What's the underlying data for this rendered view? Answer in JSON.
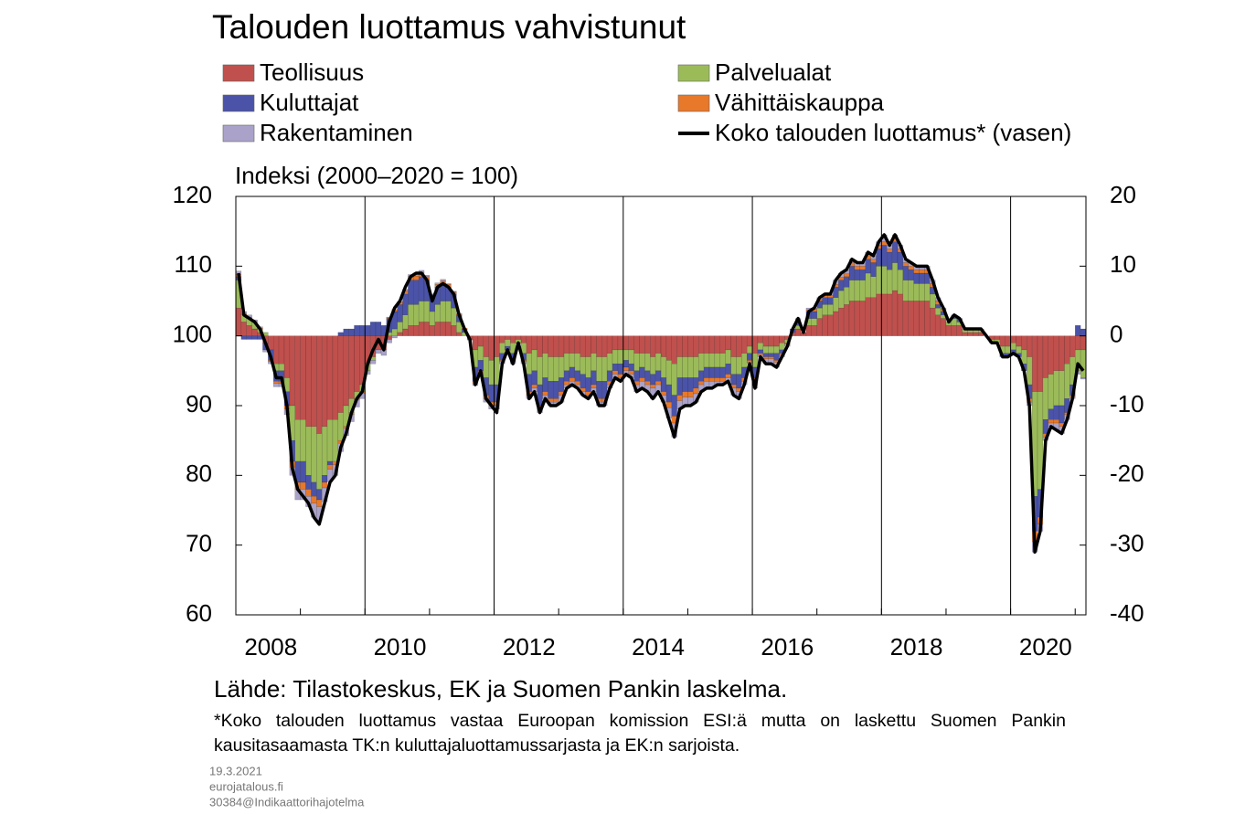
{
  "chart_data": {
    "type": "bar",
    "title": "Talouden luottamus vahvistunut",
    "y_label": "Indeksi (2000–2020 = 100)",
    "source": "Lähde: Tilastokeskus, EK ja Suomen Pankin laskelma.",
    "note": "*Koko talouden luottamus vastaa Euroopan komission ESI:ä mutta on laskettu Suomen Pankin kausitasaamasta TK:n kuluttajaluottamussarjasta ja EK:n sarjoista.",
    "footer": [
      "19.3.2021",
      "eurojatalous.fi",
      "30384@Indikaattorihajotelma"
    ],
    "ylim": [
      60,
      120
    ],
    "yticks": [
      60,
      70,
      80,
      90,
      100,
      110,
      120
    ],
    "y2lim": [
      -40,
      20
    ],
    "y2ticks": [
      -40,
      -30,
      -20,
      -10,
      0,
      10,
      20
    ],
    "categories": [
      null,
      null,
      null,
      null,
      null,
      null,
      "2008",
      null,
      null,
      null,
      null,
      null,
      null,
      null,
      null,
      null,
      null,
      null,
      null,
      null,
      null,
      null,
      null,
      null,
      null,
      null,
      null,
      null,
      null,
      null,
      "2010",
      null,
      null,
      null,
      null,
      null,
      null,
      null,
      null,
      null,
      null,
      null,
      null,
      null,
      null,
      null,
      null,
      null,
      null,
      null,
      null,
      null,
      null,
      null,
      "2012",
      null,
      null,
      null,
      null,
      null,
      null,
      null,
      null,
      null,
      null,
      null,
      null,
      null,
      null,
      null,
      null,
      null,
      null,
      null,
      null,
      null,
      null,
      null,
      "2014",
      null,
      null,
      null,
      null,
      null,
      null,
      null,
      null,
      null,
      null,
      null,
      null,
      null,
      null,
      null,
      null,
      null,
      null,
      null,
      null,
      null,
      null,
      null,
      "2016",
      null,
      null,
      null,
      null,
      null,
      null,
      null,
      null,
      null,
      null,
      null,
      null,
      null,
      null,
      null,
      null,
      null,
      null,
      null,
      null,
      null,
      null,
      null,
      "2018",
      null,
      null,
      null,
      null,
      null,
      null,
      null,
      null,
      null,
      null,
      null,
      null,
      null,
      null,
      null,
      null,
      null,
      null,
      null,
      null,
      null,
      null,
      null,
      "2020",
      null,
      null,
      null,
      null,
      null,
      null,
      null
    ],
    "series": [
      {
        "name": "Teollisuus",
        "color": "#c0504d",
        "axis": "y2",
        "values": [
          4,
          2,
          1.5,
          1,
          0.5,
          -1,
          -2,
          -4,
          -4,
          -6,
          -10,
          -12,
          -12,
          -13,
          -13,
          -14,
          -13,
          -12,
          -12,
          -11,
          -10,
          -9,
          -8,
          -7,
          -4,
          -3,
          -2,
          -2,
          -0.5,
          0,
          0.5,
          1,
          1.5,
          1.5,
          2,
          2,
          1.5,
          2,
          2,
          2,
          1.5,
          0.5,
          0,
          -0.5,
          -2,
          -1.5,
          -3,
          -3.5,
          -3,
          -1,
          -0.5,
          -1,
          -0.5,
          -1,
          -2.5,
          -2,
          -3,
          -2.5,
          -3,
          -3,
          -3,
          -2.5,
          -2.5,
          -2.5,
          -3,
          -3,
          -2.5,
          -3,
          -3,
          -2.5,
          -2,
          -2,
          -2,
          -2,
          -2.5,
          -2.5,
          -2.5,
          -3,
          -2.5,
          -3,
          -3.5,
          -4,
          -3,
          -3,
          -3,
          -3,
          -2.5,
          -2.5,
          -2.5,
          -2.5,
          -2.5,
          -2,
          -3,
          -3,
          -2.5,
          -1.5,
          -2.5,
          -1,
          -1.5,
          -1.5,
          -1.5,
          -1,
          -0.5,
          0.5,
          1,
          0.5,
          1.5,
          1.5,
          2.5,
          3,
          3,
          3.5,
          4,
          4.5,
          5,
          5,
          5,
          5.5,
          5.5,
          6,
          6,
          6,
          6.5,
          6,
          5,
          5,
          5,
          5,
          5,
          4,
          3,
          2.5,
          1.5,
          1.5,
          1.5,
          0.5,
          0.5,
          0.5,
          0.5,
          0,
          -0.5,
          -0.5,
          -1.5,
          -1.5,
          -1,
          -1.5,
          -2,
          -3,
          -8,
          -8,
          -6,
          -5.5,
          -5,
          -5,
          -4,
          -3,
          -2,
          -2
        ]
      },
      {
        "name": "Palvelualat",
        "color": "#9bbb59",
        "axis": "y2",
        "values": [
          4,
          1,
          1,
          1,
          0.5,
          0.5,
          0,
          -1,
          -1,
          -2,
          -5,
          -6,
          -6,
          -7,
          -8,
          -8,
          -7,
          -6,
          -6,
          -4,
          -3,
          -2,
          -1,
          -1,
          -1,
          -0.5,
          0,
          0,
          0.5,
          1,
          1.5,
          2,
          3,
          3,
          3,
          3,
          2,
          2.5,
          3,
          3,
          2.5,
          1.5,
          0.5,
          0,
          -2.5,
          -2,
          -3,
          -3.5,
          -4,
          -1.5,
          -1,
          -1.5,
          -0.5,
          -1.5,
          -3,
          -3,
          -4,
          -3.5,
          -3.5,
          -3.5,
          -3,
          -2.5,
          -2,
          -2.5,
          -2.5,
          -3,
          -2.5,
          -3.5,
          -3.5,
          -2.5,
          -2,
          -2,
          -1.5,
          -2,
          -2.5,
          -2,
          -2.5,
          -2.5,
          -2.5,
          -3,
          -3.5,
          -4.5,
          -3,
          -3,
          -3,
          -3,
          -2.5,
          -2,
          -2,
          -2,
          -2,
          -2,
          -2.5,
          -2.5,
          -2,
          -1,
          -2,
          -1,
          -1,
          -1,
          -1,
          -1,
          -0.5,
          0,
          0.5,
          0,
          1,
          1,
          1.5,
          1.5,
          1.5,
          2,
          2.5,
          2.5,
          3,
          3,
          3,
          3.5,
          3,
          4,
          4,
          3.5,
          4,
          3.5,
          3,
          3,
          2.5,
          2.5,
          2.5,
          2,
          1,
          0.5,
          0.5,
          1,
          0.5,
          0.5,
          0.5,
          0.5,
          0.5,
          0,
          -0.5,
          -0.5,
          -1,
          -1,
          -1,
          -1,
          -2,
          -4,
          -15,
          -14,
          -6,
          -5,
          -5,
          -5,
          -5,
          -4,
          -3,
          -4
        ]
      },
      {
        "name": "Kuluttajat",
        "color": "#4a53a8",
        "axis": "y2",
        "values": [
          0.5,
          -0.5,
          -0.5,
          -0.5,
          -0.5,
          -1,
          -1.5,
          -1.5,
          -1.5,
          -2,
          -3,
          -3,
          -3,
          -2,
          -2,
          -1.5,
          -1,
          -0.5,
          0,
          0.5,
          1,
          1,
          1.5,
          1.5,
          1.5,
          2,
          2,
          1.5,
          2,
          2.5,
          2.5,
          3,
          3.5,
          3.5,
          3.5,
          3,
          2,
          2.5,
          2.5,
          2,
          2,
          1,
          0.5,
          0,
          -2,
          -1.5,
          -2.5,
          -2.5,
          -2.5,
          -1,
          -0.5,
          -1,
          0,
          -1,
          -2.5,
          -2,
          -3,
          -2,
          -2.5,
          -2.5,
          -2,
          -1.5,
          -1.5,
          -1.5,
          -2,
          -2,
          -2,
          -2.5,
          -2.5,
          -1.5,
          -1,
          -1.5,
          -1,
          -1,
          -1.5,
          -1.5,
          -1.5,
          -1.5,
          -1.5,
          -2,
          -2.5,
          -3,
          -2.5,
          -2,
          -2,
          -1.5,
          -1.5,
          -1.5,
          -1.5,
          -1.5,
          -1.5,
          -1.5,
          -1.5,
          -2,
          -1.5,
          -1,
          -1.5,
          -0.5,
          -0.5,
          -0.5,
          -1,
          -0.5,
          0,
          0.5,
          0.5,
          0,
          1,
          1,
          1,
          1,
          1,
          1.5,
          1.5,
          1.5,
          2,
          1.5,
          1.5,
          2,
          2,
          2.5,
          3,
          2.5,
          3,
          2.5,
          2,
          1.5,
          1.5,
          1.5,
          1.5,
          1,
          0.5,
          0.5,
          0,
          0.5,
          0.5,
          0,
          0,
          0,
          0,
          0,
          0,
          0,
          -0.5,
          -0.5,
          -0.5,
          -0.5,
          -1,
          -2,
          -5,
          -4,
          -2,
          -1.5,
          -2,
          -2.5,
          -2,
          -1.5,
          1.5,
          1
        ]
      },
      {
        "name": "Vähittäiskauppa",
        "color": "#e8782a",
        "axis": "y2",
        "values": [
          0.3,
          0.2,
          0.2,
          0.1,
          0.1,
          0,
          -0.2,
          -0.3,
          -0.3,
          -0.5,
          -0.8,
          -1,
          -1,
          -1,
          -1,
          -1,
          -0.8,
          -0.6,
          -0.5,
          -0.4,
          -0.3,
          -0.3,
          -0.2,
          -0.2,
          0,
          0,
          0,
          0,
          0.2,
          0.3,
          0.4,
          0.5,
          0.5,
          0.6,
          0.6,
          0.5,
          0.3,
          0.4,
          0.4,
          0.4,
          0.3,
          0.2,
          0.1,
          0,
          -0.3,
          -0.3,
          -0.5,
          -0.5,
          -0.5,
          -0.2,
          -0.1,
          -0.2,
          -0.1,
          -0.2,
          -0.5,
          -0.5,
          -0.5,
          -0.5,
          -0.5,
          -0.5,
          -0.5,
          -0.5,
          -0.5,
          -0.5,
          -0.5,
          -0.5,
          -0.5,
          -0.5,
          -0.5,
          -0.5,
          -0.5,
          -0.5,
          -0.5,
          -0.5,
          -0.5,
          -0.5,
          -0.5,
          -0.5,
          -0.5,
          -0.5,
          -0.8,
          -1,
          -0.8,
          -0.8,
          -0.8,
          -0.8,
          -0.5,
          -0.5,
          -0.5,
          -0.5,
          -0.5,
          -0.5,
          -0.5,
          -0.5,
          -0.5,
          -0.3,
          -0.5,
          -0.2,
          -0.3,
          -0.3,
          -0.3,
          -0.2,
          -0.2,
          0,
          0.2,
          0,
          0.2,
          0.3,
          0.3,
          0.3,
          0.3,
          0.4,
          0.4,
          0.4,
          0.5,
          0.5,
          0.5,
          0.5,
          0.5,
          0.5,
          0.5,
          0.5,
          0.5,
          0.5,
          0.5,
          0.5,
          0.5,
          0.5,
          0.5,
          0.5,
          0.5,
          0.3,
          0,
          0,
          0,
          0,
          0,
          0,
          0,
          0,
          0,
          0,
          0,
          0,
          0,
          0,
          0,
          -0.5,
          -1.5,
          -1,
          -0.5,
          -0.5,
          -0.5,
          -0.5,
          -0.3,
          -0.2,
          0,
          0
        ]
      },
      {
        "name": "Rakentaminen",
        "color": "#aaa2c9",
        "axis": "y2",
        "values": [
          0.5,
          0.3,
          0.3,
          0.2,
          0.2,
          -0.3,
          -0.3,
          -0.5,
          -0.5,
          -0.8,
          -1.2,
          -1.5,
          -1.5,
          -1.5,
          -2,
          -2,
          -2,
          -1.8,
          -1.5,
          -1.2,
          -1,
          -1,
          -1,
          -0.8,
          -0.5,
          -0.5,
          -0.5,
          -0.8,
          -0.5,
          -0.3,
          0,
          0.2,
          0.3,
          0.4,
          0.3,
          0.2,
          0.2,
          0.2,
          0.2,
          0.1,
          0.1,
          0,
          0,
          -0.1,
          -0.3,
          -0.3,
          -0.5,
          -0.5,
          -0.5,
          -0.3,
          0,
          -0.3,
          0,
          -0.3,
          -0.5,
          -0.5,
          -0.5,
          -0.5,
          -0.5,
          -0.5,
          -1,
          -0.5,
          -0.5,
          -0.5,
          -0.5,
          -0.5,
          -0.5,
          -0.5,
          -0.5,
          -0.5,
          -0.5,
          -0.5,
          -0.5,
          -0.5,
          -1,
          -1,
          -1,
          -1.5,
          -1,
          -1,
          -1.5,
          -2,
          -1.2,
          -1.2,
          -1.2,
          -1.2,
          -1,
          -1,
          -1,
          -0.5,
          -0.5,
          -0.5,
          -1,
          -1,
          -0.5,
          -0.2,
          -1,
          -0.3,
          -0.7,
          -0.7,
          -0.7,
          -0.3,
          -0.3,
          0,
          0.3,
          0,
          0.3,
          0.2,
          0.2,
          0.2,
          0.2,
          0.6,
          0.6,
          0.6,
          0.5,
          0.5,
          0.5,
          0.5,
          0.5,
          0.5,
          1,
          0.5,
          0.5,
          0.5,
          0.5,
          0.5,
          0.5,
          0.5,
          0.5,
          0.5,
          0.5,
          0.2,
          0,
          0,
          0,
          0,
          0,
          0,
          0,
          0,
          0,
          0,
          0,
          0,
          0,
          0,
          0,
          -0.5,
          -1.5,
          -1,
          -0.5,
          -0.5,
          -1,
          -1,
          -0.7,
          -0.3,
          -0.5,
          -0.2
        ]
      },
      {
        "name": "Koko talouden luottamus* (vasen)",
        "type": "line",
        "color": "#000000",
        "axis": "y",
        "values": [
          109,
          103,
          102.5,
          102,
          101,
          99,
          97,
          94,
          94,
          90,
          81,
          78,
          77,
          76,
          74,
          73,
          76,
          79,
          80,
          84,
          86,
          89,
          91,
          92,
          96,
          98,
          99.5,
          98,
          102,
          104,
          105,
          107,
          108.5,
          109,
          109,
          108,
          105,
          107,
          107.5,
          107,
          106,
          103,
          101,
          99.5,
          93,
          95,
          91,
          90,
          89,
          96,
          98,
          96,
          99,
          96,
          91,
          92,
          89,
          91,
          90,
          90,
          90.5,
          92.5,
          93,
          92.5,
          91.5,
          91,
          92,
          90,
          90,
          92.5,
          94,
          93.5,
          94.5,
          94,
          92,
          92.5,
          92,
          91,
          92,
          90.5,
          88,
          85.5,
          89.5,
          90,
          90,
          90.5,
          92,
          92.5,
          92.5,
          93,
          93,
          93.5,
          91.5,
          91,
          93,
          96,
          92.5,
          97,
          96,
          96,
          95.5,
          97,
          98.5,
          101,
          102.5,
          100.5,
          103.5,
          104,
          105.5,
          106,
          106,
          108,
          109,
          109.5,
          111,
          110.5,
          110.5,
          112,
          111.5,
          113.5,
          114.5,
          113,
          114.5,
          113,
          111,
          110.5,
          110,
          110,
          110,
          108,
          105.5,
          104,
          102,
          103,
          102.5,
          101,
          101,
          101,
          101,
          100,
          99,
          99,
          97,
          97,
          97.5,
          97,
          95,
          90,
          69,
          72,
          85,
          87,
          86.5,
          86,
          88,
          91,
          96,
          95
        ]
      }
    ]
  }
}
